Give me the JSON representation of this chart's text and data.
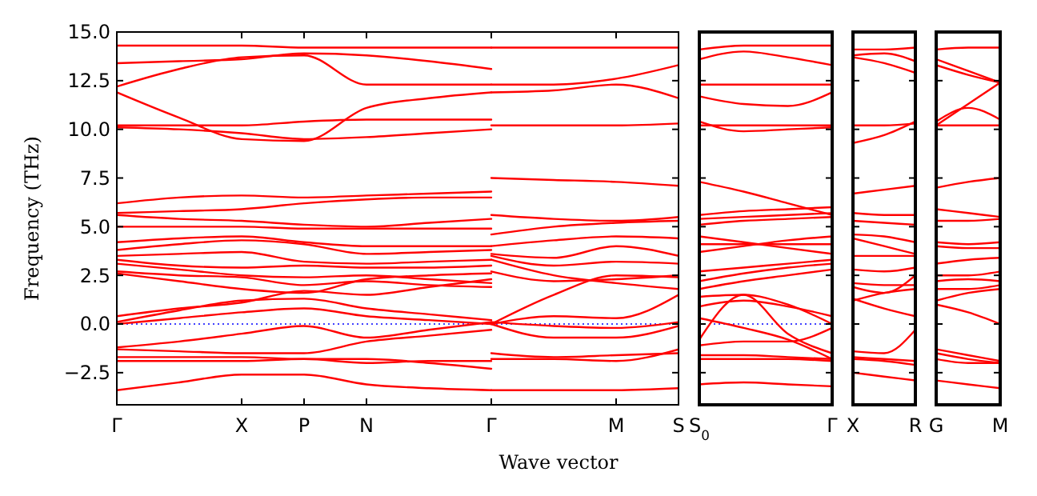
{
  "chart_data": [
    {
      "type": "line",
      "ylabel": "Frequency (THz)",
      "xlabel": "Wave vector",
      "color": "#ff0000",
      "ylim": [
        -4.15,
        15
      ],
      "categories": [
        "Γ",
        null,
        "X",
        "P",
        "N",
        null,
        "Γ",
        null,
        "M",
        "S"
      ],
      "yticks": [
        {
          "value": -2.5,
          "label": "−2.5"
        },
        {
          "value": 0,
          "label": "0.0"
        },
        {
          "value": 2.5,
          "label": "2.5"
        },
        {
          "value": 5,
          "label": "5.0"
        },
        {
          "value": 7.5,
          "label": "7.5"
        },
        {
          "value": 10,
          "label": "10.0"
        },
        {
          "value": 12.5,
          "label": "12.5"
        },
        {
          "value": 15,
          "label": "15.0"
        }
      ],
      "ref_lines": [
        {
          "axis": "y",
          "value": 0,
          "color": "#0000ff",
          "line_style": "dotted"
        }
      ],
      "series": [
        {
          "values": [
            14.3,
            14.3,
            14.3,
            14.2,
            14.2,
            14.2,
            14.2,
            null,
            null,
            null
          ]
        },
        {
          "values": [
            13.4,
            13.5,
            13.6,
            13.9,
            13.8,
            13.5,
            13.1,
            null,
            null,
            null
          ]
        },
        {
          "values": [
            12.2,
            13.1,
            13.7,
            13.8,
            12.3,
            12.3,
            12.3,
            null,
            null,
            null
          ]
        },
        {
          "values": [
            11.9,
            10.6,
            9.5,
            9.4,
            11.1,
            11.6,
            11.9,
            null,
            null,
            null
          ]
        },
        {
          "values": [
            10.2,
            10.2,
            10.2,
            10.4,
            10.5,
            10.5,
            10.5,
            null,
            null,
            null
          ]
        },
        {
          "values": [
            10.1,
            10.0,
            9.8,
            9.5,
            9.6,
            9.8,
            10.0,
            null,
            null,
            null
          ]
        },
        {
          "values": [
            6.2,
            6.5,
            6.6,
            6.5,
            6.6,
            6.7,
            6.8,
            null,
            null,
            null
          ]
        },
        {
          "values": [
            5.7,
            5.8,
            5.9,
            6.2,
            6.4,
            6.5,
            6.5,
            null,
            null,
            null
          ]
        },
        {
          "values": [
            5.6,
            5.4,
            5.3,
            5.1,
            5.0,
            5.2,
            5.4,
            null,
            null,
            null
          ]
        },
        {
          "values": [
            5.0,
            5.0,
            5.0,
            4.9,
            4.9,
            4.9,
            4.9,
            null,
            null,
            null
          ]
        },
        {
          "values": [
            4.2,
            4.4,
            4.5,
            4.2,
            4.0,
            4.0,
            4.0,
            null,
            null,
            null
          ]
        },
        {
          "values": [
            3.8,
            4.1,
            4.3,
            4.1,
            3.6,
            3.7,
            3.8,
            null,
            null,
            null
          ]
        },
        {
          "values": [
            3.5,
            3.6,
            3.7,
            3.2,
            3.1,
            3.2,
            3.3,
            null,
            null,
            null
          ]
        },
        {
          "values": [
            3.3,
            3.0,
            2.9,
            3.0,
            2.9,
            2.9,
            3.0,
            null,
            null,
            null
          ]
        },
        {
          "values": [
            3.1,
            2.8,
            2.5,
            2.4,
            2.5,
            2.3,
            2.1,
            null,
            null,
            null
          ]
        },
        {
          "values": [
            2.7,
            2.5,
            2.4,
            2.0,
            2.2,
            2.0,
            1.9,
            null,
            null,
            null
          ]
        },
        {
          "values": [
            2.6,
            2.2,
            1.8,
            1.6,
            2.3,
            2.5,
            2.6,
            null,
            null,
            null
          ]
        },
        {
          "values": [
            0.4,
            0.8,
            1.1,
            1.7,
            1.5,
            1.9,
            2.3,
            null,
            null,
            null
          ]
        },
        {
          "values": [
            0.1,
            0.7,
            1.2,
            1.3,
            0.8,
            0.5,
            0.2,
            null,
            null,
            null
          ]
        },
        {
          "values": [
            0,
            0.3,
            0.6,
            0.8,
            0.4,
            0.2,
            0,
            null,
            null,
            null
          ]
        },
        {
          "values": [
            -1.2,
            -0.9,
            -0.5,
            -0.1,
            -0.7,
            -0.3,
            0.1,
            null,
            null,
            null
          ]
        },
        {
          "values": [
            -1.3,
            -1.4,
            -1.5,
            -1.5,
            -0.9,
            -0.6,
            -0.3,
            null,
            null,
            null
          ]
        },
        {
          "values": [
            -1.7,
            -1.7,
            -1.7,
            -1.8,
            -1.8,
            -2.0,
            -2.3,
            null,
            null,
            null
          ]
        },
        {
          "values": [
            -1.9,
            -1.9,
            -1.9,
            -1.8,
            -2.0,
            -1.9,
            -1.9,
            null,
            null,
            null
          ]
        },
        {
          "values": [
            -3.4,
            -3.0,
            -2.6,
            -2.6,
            -3.1,
            -3.3,
            -3.4,
            null,
            null,
            null
          ]
        },
        {
          "values": [
            null,
            null,
            null,
            null,
            null,
            null,
            14.2,
            14.2,
            14.2,
            14.2
          ]
        },
        {
          "values": [
            null,
            null,
            null,
            null,
            null,
            null,
            12.3,
            12.3,
            12.6,
            13.3
          ]
        },
        {
          "values": [
            null,
            null,
            null,
            null,
            null,
            null,
            11.9,
            12.0,
            12.3,
            11.6
          ]
        },
        {
          "values": [
            null,
            null,
            null,
            null,
            null,
            null,
            10.2,
            10.2,
            10.2,
            10.3
          ]
        },
        {
          "values": [
            null,
            null,
            null,
            null,
            null,
            null,
            7.5,
            7.4,
            7.3,
            7.1
          ]
        },
        {
          "values": [
            null,
            null,
            null,
            null,
            null,
            null,
            5.6,
            5.4,
            5.3,
            5.5
          ]
        },
        {
          "values": [
            null,
            null,
            null,
            null,
            null,
            null,
            4.6,
            5.0,
            5.2,
            5.3
          ]
        },
        {
          "values": [
            null,
            null,
            null,
            null,
            null,
            null,
            4.0,
            4.3,
            4.5,
            4.4
          ]
        },
        {
          "values": [
            null,
            null,
            null,
            null,
            null,
            null,
            3.6,
            3.4,
            4.0,
            3.5
          ]
        },
        {
          "values": [
            null,
            null,
            null,
            null,
            null,
            null,
            3.5,
            3.0,
            3.2,
            3.1
          ]
        },
        {
          "values": [
            null,
            null,
            null,
            null,
            null,
            null,
            3.3,
            2.5,
            2.1,
            1.8
          ]
        },
        {
          "values": [
            null,
            null,
            null,
            null,
            null,
            null,
            2.7,
            2.2,
            2.3,
            2.5
          ]
        },
        {
          "values": [
            null,
            null,
            null,
            null,
            null,
            null,
            0,
            1.5,
            2.5,
            2.4
          ]
        },
        {
          "values": [
            null,
            null,
            null,
            null,
            null,
            null,
            0,
            0.4,
            0.3,
            1.5
          ]
        },
        {
          "values": [
            null,
            null,
            null,
            null,
            null,
            null,
            0.1,
            -0.1,
            -0.2,
            0.1
          ]
        },
        {
          "values": [
            null,
            null,
            null,
            null,
            null,
            null,
            0,
            -0.7,
            -0.7,
            -0.1
          ]
        },
        {
          "values": [
            null,
            null,
            null,
            null,
            null,
            null,
            -1.5,
            -1.7,
            -1.6,
            -1.5
          ]
        },
        {
          "values": [
            null,
            null,
            null,
            null,
            null,
            null,
            -1.8,
            -1.8,
            -1.9,
            -1.3
          ]
        },
        {
          "values": [
            null,
            null,
            null,
            null,
            null,
            null,
            -3.4,
            -3.4,
            -3.4,
            -3.3
          ]
        }
      ]
    },
    {
      "type": "line",
      "color": "#ff0000",
      "ylim": [
        -4.15,
        15
      ],
      "tick_labels": "x",
      "categories": [
        "S$_{0}$",
        null,
        null,
        "Γ"
      ],
      "ref_lines": [
        {
          "axis": "y",
          "value": 0,
          "color": "#0000ff",
          "line_style": "dotted"
        }
      ],
      "series": [
        {
          "values": [
            14.1,
            14.3,
            14.3,
            14.3
          ]
        },
        {
          "values": [
            13.6,
            14.0,
            13.7,
            13.3
          ]
        },
        {
          "values": [
            12.3,
            12.3,
            12.3,
            12.3
          ]
        },
        {
          "values": [
            11.7,
            11.3,
            11.2,
            11.9
          ]
        },
        {
          "values": [
            10.4,
            9.9,
            10.0,
            10.1
          ]
        },
        {
          "values": [
            10.2,
            10.2,
            10.2,
            10.2
          ]
        },
        {
          "values": [
            7.3,
            6.8,
            6.2,
            5.6
          ]
        },
        {
          "values": [
            5.6,
            5.8,
            5.9,
            6.0
          ]
        },
        {
          "values": [
            5.4,
            5.5,
            5.6,
            5.7
          ]
        },
        {
          "values": [
            5.1,
            5.3,
            5.4,
            5.5
          ]
        },
        {
          "values": [
            4.5,
            4.2,
            3.9,
            3.6
          ]
        },
        {
          "values": [
            4.1,
            4.1,
            4.1,
            4.1
          ]
        },
        {
          "values": [
            3.7,
            4.0,
            4.3,
            4.5
          ]
        },
        {
          "values": [
            2.7,
            2.9,
            3.1,
            3.3
          ]
        },
        {
          "values": [
            2.2,
            2.6,
            2.9,
            3.1
          ]
        },
        {
          "values": [
            1.8,
            2.2,
            2.5,
            2.8
          ]
        },
        {
          "values": [
            1.4,
            1.5,
            1.0,
            0
          ]
        },
        {
          "values": [
            0.9,
            1.2,
            0.9,
            0.4
          ]
        },
        {
          "values": [
            -0.8,
            1.5,
            -0.5,
            -1.5
          ]
        },
        {
          "values": [
            0.3,
            -0.2,
            -0.8,
            -1.8
          ]
        },
        {
          "values": [
            -1.1,
            -0.9,
            -0.9,
            -0.2
          ]
        },
        {
          "values": [
            -1.6,
            -1.6,
            -1.7,
            -1.8
          ]
        },
        {
          "values": [
            -1.8,
            -1.8,
            -1.8,
            -1.9
          ]
        },
        {
          "values": [
            -3.1,
            -3.0,
            -3.1,
            -3.2
          ]
        }
      ]
    },
    {
      "type": "line",
      "color": "#ff0000",
      "ylim": [
        -4.15,
        15
      ],
      "tick_labels": "x",
      "categories": [
        "X",
        null,
        "R"
      ],
      "series": [
        {
          "values": [
            14.1,
            14.1,
            14.2
          ]
        },
        {
          "values": [
            13.8,
            13.9,
            13.5
          ]
        },
        {
          "values": [
            13.7,
            13.4,
            12.9
          ]
        },
        {
          "values": [
            10.2,
            10.2,
            10.3
          ]
        },
        {
          "values": [
            9.3,
            9.7,
            10.4
          ]
        },
        {
          "values": [
            6.7,
            6.9,
            7.1
          ]
        },
        {
          "values": [
            5.7,
            5.6,
            5.6
          ]
        },
        {
          "values": [
            5.3,
            5.2,
            5.1
          ]
        },
        {
          "values": [
            4.6,
            4.5,
            4.2
          ]
        },
        {
          "values": [
            4.4,
            4.0,
            3.6
          ]
        },
        {
          "values": [
            3.5,
            3.5,
            3.5
          ]
        },
        {
          "values": [
            2.8,
            2.7,
            2.9
          ]
        },
        {
          "values": [
            2.1,
            2.0,
            2.0
          ]
        },
        {
          "values": [
            1.9,
            1.6,
            2.5
          ]
        },
        {
          "values": [
            1.2,
            1.6,
            1.8
          ]
        },
        {
          "values": [
            1.3,
            0.8,
            0.4
          ]
        },
        {
          "values": [
            -1.4,
            -1.5,
            -0.3
          ]
        },
        {
          "values": [
            -1.7,
            -1.8,
            -1.9
          ]
        },
        {
          "values": [
            -1.8,
            -1.9,
            -2.1
          ]
        },
        {
          "values": [
            -2.5,
            -2.7,
            -2.9
          ]
        }
      ]
    },
    {
      "type": "line",
      "color": "#ff0000",
      "ylim": [
        -4.15,
        15
      ],
      "tick_labels": "x",
      "categories": [
        "G",
        null,
        "M"
      ],
      "series": [
        {
          "values": [
            14.1,
            14.2,
            14.2
          ]
        },
        {
          "values": [
            13.6,
            13.0,
            12.4
          ]
        },
        {
          "values": [
            13.3,
            12.8,
            12.4
          ]
        },
        {
          "values": [
            10.2,
            11.3,
            12.4
          ]
        },
        {
          "values": [
            10.4,
            11.1,
            10.5
          ]
        },
        {
          "values": [
            10.2,
            10.2,
            10.2
          ]
        },
        {
          "values": [
            7.0,
            7.3,
            7.5
          ]
        },
        {
          "values": [
            5.9,
            5.7,
            5.5
          ]
        },
        {
          "values": [
            5.3,
            5.3,
            5.4
          ]
        },
        {
          "values": [
            4.2,
            4.1,
            4.2
          ]
        },
        {
          "values": [
            4.0,
            3.9,
            3.9
          ]
        },
        {
          "values": [
            3.1,
            3.3,
            3.4
          ]
        },
        {
          "values": [
            2.5,
            2.5,
            2.7
          ]
        },
        {
          "values": [
            2.2,
            2.3,
            2.2
          ]
        },
        {
          "values": [
            1.8,
            1.8,
            2.0
          ]
        },
        {
          "values": [
            1.2,
            1.6,
            1.8
          ]
        },
        {
          "values": [
            1.0,
            0.6,
            0
          ]
        },
        {
          "values": [
            -1.3,
            -1.6,
            -1.9
          ]
        },
        {
          "values": [
            -1.5,
            -1.8,
            -2.0
          ]
        },
        {
          "values": [
            -1.8,
            -2.0,
            -2.0
          ]
        },
        {
          "values": [
            -2.9,
            -3.1,
            -3.3
          ]
        }
      ]
    }
  ]
}
